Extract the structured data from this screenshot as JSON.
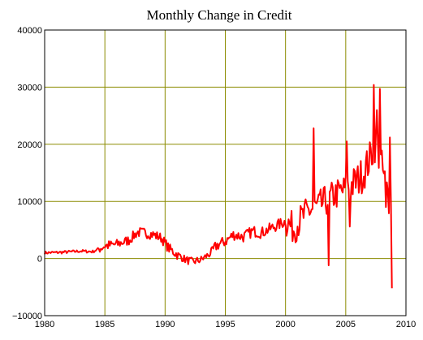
{
  "chart_data": {
    "type": "line",
    "title": "Monthly Change in Credit",
    "xlabel": "",
    "ylabel": "",
    "xlim": [
      1980,
      2010
    ],
    "ylim": [
      -10000,
      40000
    ],
    "x_ticks": [
      1980,
      1985,
      1990,
      1995,
      2000,
      2005,
      2010
    ],
    "x_tick_labels": [
      "1980",
      "1985",
      "1990",
      "1995",
      "2000",
      "2005",
      "2010"
    ],
    "y_ticks": [
      -10000,
      0,
      10000,
      20000,
      30000,
      40000
    ],
    "y_tick_labels": [
      "−10000",
      "0",
      "10000",
      "20000",
      "30000",
      "40000"
    ],
    "grid": true,
    "grid_color": "#8b8b00",
    "series_color": "#ff0000",
    "anchor_points": [
      [
        1980.0,
        1000
      ],
      [
        1981.5,
        1100
      ],
      [
        1983.0,
        1300
      ],
      [
        1984.0,
        1200
      ],
      [
        1985.0,
        2200
      ],
      [
        1986.0,
        2500
      ],
      [
        1987.0,
        3200
      ],
      [
        1987.7,
        4600
      ],
      [
        1988.3,
        4500
      ],
      [
        1989.0,
        4200
      ],
      [
        1989.7,
        3600
      ],
      [
        1990.3,
        1800
      ],
      [
        1991.0,
        700
      ],
      [
        1991.7,
        -200
      ],
      [
        1992.3,
        -600
      ],
      [
        1993.0,
        -200
      ],
      [
        1993.7,
        800
      ],
      [
        1994.3,
        2300
      ],
      [
        1995.0,
        3000
      ],
      [
        1995.7,
        4200
      ],
      [
        1996.5,
        3800
      ],
      [
        1997.3,
        4800
      ],
      [
        1998.0,
        4500
      ],
      [
        1998.7,
        5200
      ],
      [
        1999.3,
        5800
      ],
      [
        2000.0,
        6500
      ],
      [
        2000.7,
        5200
      ],
      [
        2001.3,
        7000
      ],
      [
        2002.0,
        8500
      ],
      [
        2002.7,
        9000
      ],
      [
        2003.3,
        10000
      ],
      [
        2004.0,
        11000
      ],
      [
        2004.7,
        11800
      ],
      [
        2005.3,
        12500
      ],
      [
        2005.9,
        13500
      ],
      [
        2006.5,
        15000
      ],
      [
        2007.0,
        17500
      ],
      [
        2007.4,
        20000
      ],
      [
        2007.8,
        18000
      ],
      [
        2008.1,
        15000
      ],
      [
        2008.4,
        12000
      ],
      [
        2008.7,
        9500
      ],
      [
        2008.9,
        8200
      ]
    ],
    "spikes": [
      [
        2002.3,
        22800
      ],
      [
        2003.6,
        -1200
      ],
      [
        2005.1,
        20500
      ],
      [
        2005.3,
        5600
      ],
      [
        2007.35,
        30400
      ],
      [
        2007.55,
        26000
      ],
      [
        2007.85,
        29700
      ],
      [
        2008.3,
        9000
      ],
      [
        2008.65,
        21200
      ],
      [
        2008.88,
        -5200
      ]
    ]
  }
}
